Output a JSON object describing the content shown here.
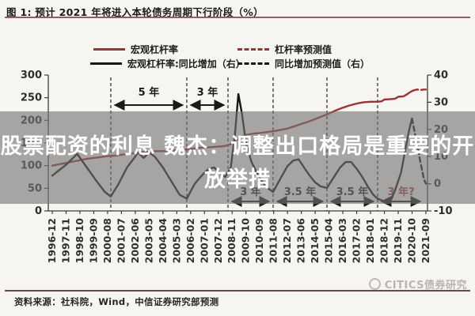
{
  "figure": {
    "title": "图 1: 预计 2021 年将进入本轮债务周期下行阶段（%）",
    "source_note": "资料来源：社科院，Wind，中信证券研究部预测",
    "watermark": "CITICS债券研究"
  },
  "overlay": {
    "line1": "股票配资的利息 魏杰：调整出口格局是重要的开",
    "line2": "放举措"
  },
  "chart_data": {
    "type": "line",
    "title": "预计 2021 年将进入本轮债务周期下行阶段（%）",
    "legend_position": "top",
    "x_labels": [
      "1996-12",
      "1997-11",
      "1998-10",
      "1999-09",
      "2000-08",
      "2001-07",
      "2002-06",
      "2003-05",
      "2004-04",
      "2005-03",
      "2006-02",
      "2007-01",
      "2007-12",
      "2008-11",
      "2009-10",
      "2010-09",
      "2011-08",
      "2012-07",
      "2013-06",
      "2014-05",
      "2015-04",
      "2016-03",
      "2017-02",
      "2018-01",
      "2018-12",
      "2019-11",
      "2020-10",
      "2021-09"
    ],
    "left_axis": {
      "ticks": [
        0,
        50,
        100,
        150,
        200,
        250,
        300
      ],
      "range": [
        0,
        300
      ]
    },
    "right_axis": {
      "ticks": [
        -10,
        0,
        10,
        20,
        30,
        40
      ],
      "range": [
        -10,
        40
      ]
    },
    "legend": [
      {
        "label": "宏观杠杆率",
        "color": "#9c3238",
        "dash": false
      },
      {
        "label": "杠杆率预测值",
        "color": "#9c3238",
        "dash": true
      },
      {
        "label": "宏观杠杆率:同比增加（右）",
        "color": "#161616",
        "dash": false
      },
      {
        "label": "同比增加预测值（右）",
        "color": "#161616",
        "dash": true
      }
    ],
    "series": [
      {
        "name": "宏观杠杆率",
        "axis": "left",
        "style": "solid",
        "color": "#9c3238",
        "points": [
          [
            0,
            100
          ],
          [
            0.5,
            103
          ],
          [
            1,
            106
          ],
          [
            1.5,
            109
          ],
          [
            2,
            112
          ],
          [
            2.5,
            115
          ],
          [
            3,
            117
          ],
          [
            3.5,
            119
          ],
          [
            4,
            121
          ],
          [
            4.5,
            122
          ],
          [
            5,
            124
          ],
          [
            5.5,
            126
          ],
          [
            6,
            128
          ],
          [
            6.5,
            130
          ],
          [
            7,
            131
          ],
          [
            7.5,
            132
          ],
          [
            8,
            132
          ],
          [
            8.5,
            133
          ],
          [
            9,
            134
          ],
          [
            9.5,
            135
          ],
          [
            10,
            137
          ],
          [
            10.5,
            139
          ],
          [
            11,
            140
          ],
          [
            11.5,
            141
          ],
          [
            12,
            142
          ],
          [
            12.4,
            143
          ],
          [
            12.8,
            146
          ],
          [
            13.1,
            152
          ],
          [
            13.5,
            161
          ],
          [
            13.8,
            166
          ],
          [
            14.2,
            169
          ],
          [
            14.6,
            171
          ],
          [
            15,
            172
          ],
          [
            15.5,
            174
          ],
          [
            16,
            176
          ],
          [
            16.5,
            179
          ],
          [
            17,
            182
          ],
          [
            17.5,
            187
          ],
          [
            18,
            192
          ],
          [
            18.5,
            197
          ],
          [
            19,
            203
          ],
          [
            19.5,
            209
          ],
          [
            20,
            215
          ],
          [
            20.5,
            222
          ],
          [
            21,
            228
          ],
          [
            21.5,
            233
          ],
          [
            22,
            237
          ],
          [
            22.5,
            240
          ],
          [
            23,
            241
          ],
          [
            23.5,
            241
          ],
          [
            23.8,
            242
          ],
          [
            24,
            246
          ],
          [
            24.5,
            247
          ],
          [
            24.8,
            248
          ],
          [
            25,
            252
          ],
          [
            25.4,
            253
          ],
          [
            25.6,
            257
          ],
          [
            25.9,
            263
          ],
          [
            26.1,
            266
          ]
        ]
      },
      {
        "name": "杠杆率预测值",
        "axis": "left",
        "style": "dashed",
        "color": "#9c3238",
        "points": [
          [
            26.1,
            266
          ],
          [
            26.35,
            268
          ],
          [
            26.6,
            267
          ],
          [
            26.85,
            268
          ],
          [
            27,
            268
          ]
        ]
      },
      {
        "name": "宏观杠杆率:同比增加（右）",
        "axis": "right",
        "style": "solid",
        "color": "#161616",
        "points": [
          [
            0,
            3
          ],
          [
            1,
            7
          ],
          [
            1.8,
            11
          ],
          [
            2.5,
            6
          ],
          [
            3.2,
            1
          ],
          [
            3.8,
            -3
          ],
          [
            4.23,
            -4.7
          ],
          [
            4.8,
            0
          ],
          [
            5.4,
            6
          ],
          [
            6,
            10
          ],
          [
            6.2,
            11.5
          ],
          [
            6.6,
            9.5
          ],
          [
            7,
            11.5
          ],
          [
            7.4,
            10
          ],
          [
            8,
            6
          ],
          [
            8.6,
            1
          ],
          [
            9.2,
            -4
          ],
          [
            9.72,
            -5.5
          ],
          [
            10.3,
            0
          ],
          [
            10.8,
            3
          ],
          [
            11.3,
            5.5
          ],
          [
            11.7,
            6
          ],
          [
            12.1,
            4
          ],
          [
            12.5,
            2.5
          ],
          [
            12.9,
            6
          ],
          [
            13.2,
            18
          ],
          [
            13.45,
            33
          ],
          [
            13.7,
            26
          ],
          [
            14,
            15
          ],
          [
            14.4,
            8
          ],
          [
            14.9,
            3
          ],
          [
            15.4,
            -1
          ],
          [
            15.96,
            -3
          ],
          [
            16.5,
            2
          ],
          [
            17,
            6.5
          ],
          [
            17.4,
            8.5
          ],
          [
            17.8,
            9
          ],
          [
            18.2,
            6
          ],
          [
            18.6,
            3
          ],
          [
            19,
            0.5
          ],
          [
            19.4,
            -1
          ],
          [
            19.85,
            -1.5
          ],
          [
            20.3,
            2
          ],
          [
            20.8,
            6
          ],
          [
            21.2,
            8
          ],
          [
            21.6,
            8
          ],
          [
            22,
            5.5
          ],
          [
            22.4,
            2.5
          ],
          [
            22.8,
            -1
          ],
          [
            23.2,
            -4
          ],
          [
            23.51,
            -5.5
          ],
          [
            24,
            -6.5
          ],
          [
            24.4,
            -7
          ],
          [
            24.8,
            -2
          ],
          [
            25.2,
            4
          ],
          [
            25.5,
            12
          ],
          [
            25.8,
            20
          ],
          [
            26,
            24
          ]
        ]
      },
      {
        "name": "同比增加预测值（右）",
        "axis": "right",
        "style": "dashed",
        "color": "#161616",
        "points": [
          [
            26,
            24
          ],
          [
            26.3,
            16
          ],
          [
            26.6,
            8
          ],
          [
            26.85,
            2
          ],
          [
            27,
            0
          ]
        ]
      }
    ],
    "phase_lines_idx": [
      4.23,
      9.72,
      12.7,
      15.96,
      19.85,
      23.51
    ],
    "annotations_top": [
      {
        "label": "5 年",
        "from": 4.23,
        "to": 9.72,
        "color": "#1a1a1a"
      },
      {
        "label": "3 年",
        "from": 9.72,
        "to": 12.7,
        "color": "#1a1a1a"
      }
    ],
    "annotations_bottom": [
      {
        "label": "3 年",
        "from": 12.7,
        "to": 15.96,
        "color": "#1f1f1f"
      },
      {
        "label": "3.5 年",
        "from": 15.96,
        "to": 19.85,
        "color": "#1f1f1f"
      },
      {
        "label": "3.5 年",
        "from": 19.85,
        "to": 23.51,
        "color": "#1f1f1f"
      },
      {
        "label": "3 年?",
        "from": 23.51,
        "to": 26.9,
        "color": "#a23a3c"
      }
    ]
  }
}
